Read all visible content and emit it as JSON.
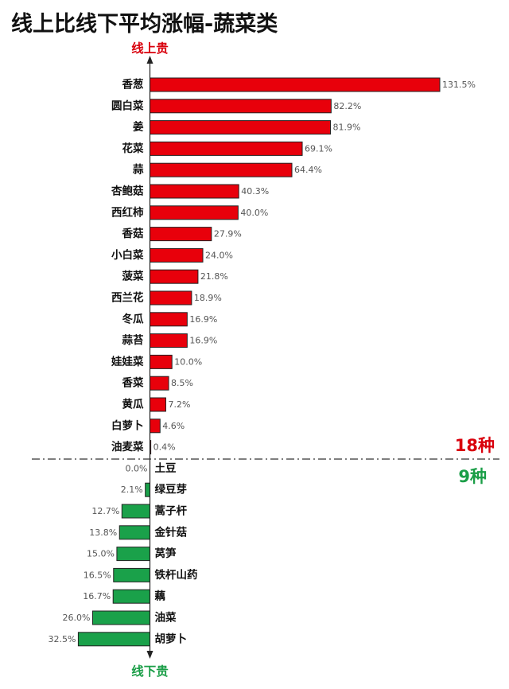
{
  "title": "线上比线下平均涨幅-蔬菜类",
  "colors": {
    "up": "#e8000b",
    "down": "#1aa14a",
    "bar_border": "#222222",
    "up_text": "#d9000c",
    "down_text": "#1a9e47"
  },
  "chart_data": {
    "type": "bar",
    "orientation": "horizontal",
    "unit": "%",
    "axis_top_label": "线上贵",
    "axis_bottom_label": "线下贵",
    "divider_labels": {
      "upper": "18种",
      "lower": "9种"
    },
    "categories": [
      "香葱",
      "圆白菜",
      "姜",
      "花菜",
      "蒜",
      "杏鲍菇",
      "西红柿",
      "香菇",
      "小白菜",
      "菠菜",
      "西兰花",
      "冬瓜",
      "蒜苔",
      "娃娃菜",
      "香菜",
      "黄瓜",
      "白萝卜",
      "油麦菜",
      "土豆",
      "绿豆芽",
      "蒿子杆",
      "金针菇",
      "莴笋",
      "铁杆山药",
      "藕",
      "油菜",
      "胡萝卜"
    ],
    "values": [
      131.5,
      82.2,
      81.9,
      69.1,
      64.4,
      40.3,
      40.0,
      27.9,
      24.0,
      21.8,
      18.9,
      16.9,
      16.9,
      10.0,
      8.5,
      7.2,
      4.6,
      0.4,
      0.0,
      -2.1,
      -12.7,
      -13.8,
      -15.0,
      -16.5,
      -16.7,
      -26.0,
      -32.5
    ],
    "value_labels": [
      "131.5%",
      "82.2%",
      "81.9%",
      "69.1%",
      "64.4%",
      "40.3%",
      "40.0%",
      "27.9%",
      "24.0%",
      "21.8%",
      "18.9%",
      "16.9%",
      "16.9%",
      "10.0%",
      "8.5%",
      "7.2%",
      "4.6%",
      "0.4%",
      "0.0%",
      "2.1%",
      "12.7%",
      "13.8%",
      "15.0%",
      "16.5%",
      "16.7%",
      "26.0%",
      "32.5%"
    ]
  }
}
